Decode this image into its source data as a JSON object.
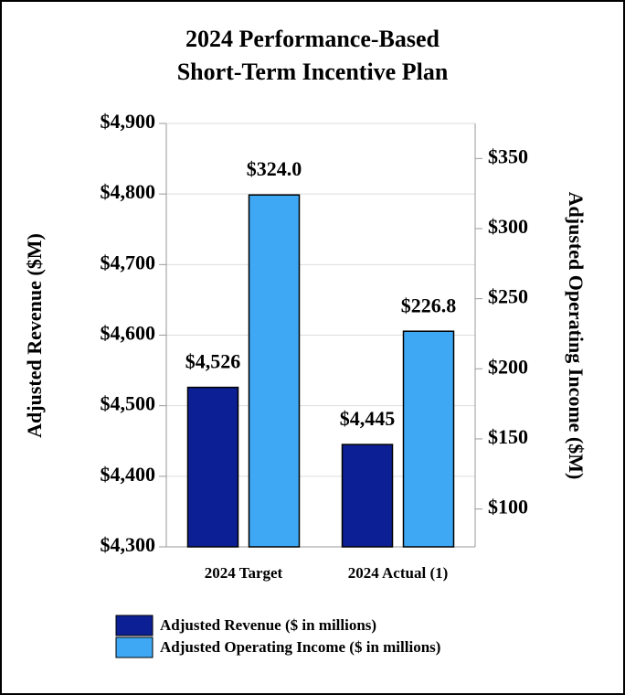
{
  "chart_data": {
    "type": "bar",
    "title": [
      "2024 Performance-Based",
      "Short-Term Incentive Plan"
    ],
    "ylabel": "Adjusted Revenue ($M)",
    "y2label": "Adjusted Operating Income ($M)",
    "categories": [
      "2024 Target",
      "2024 Actual (1)"
    ],
    "series": [
      {
        "name": "Adjusted Revenue ($ in millions)",
        "color": "#0c1f94",
        "values": [
          4526,
          4445
        ],
        "value_labels": [
          "$4,526",
          "$4,445"
        ]
      },
      {
        "name": "Adjusted Operating Income ($ in millions)",
        "color": "#3ea8f5",
        "axis": "y2",
        "values": [
          324.0,
          226.8
        ],
        "value_labels": [
          "$324.0",
          "$226.8"
        ]
      }
    ],
    "ylim": [
      4300,
      4900
    ],
    "yticks": [
      {
        "value": 4300,
        "label": "$4,300"
      },
      {
        "value": 4400,
        "label": "$4,400"
      },
      {
        "value": 4500,
        "label": "$4,500"
      },
      {
        "value": 4600,
        "label": "$4,600"
      },
      {
        "value": 4700,
        "label": "$4,700"
      },
      {
        "value": 4800,
        "label": "$4,800"
      },
      {
        "value": 4900,
        "label": "$4,900"
      }
    ],
    "y2lim": [
      73,
      375
    ],
    "y2ticks": [
      {
        "value": 100,
        "label": "$100"
      },
      {
        "value": 150,
        "label": "$150"
      },
      {
        "value": 200,
        "label": "$200"
      },
      {
        "value": 250,
        "label": "$250"
      },
      {
        "value": 300,
        "label": "$300"
      },
      {
        "value": 350,
        "label": "$350"
      }
    ],
    "grid": true
  }
}
